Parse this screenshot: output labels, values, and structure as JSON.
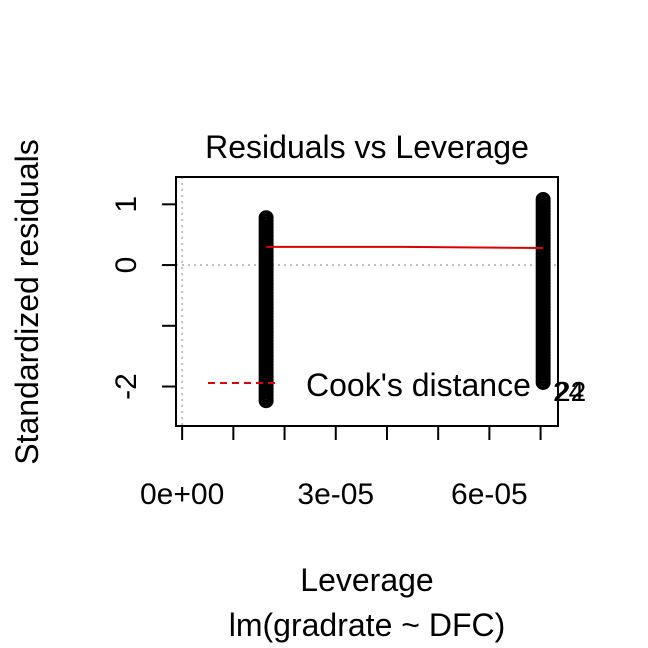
{
  "chart_data": {
    "type": "scatter",
    "title": "Residuals vs Leverage",
    "xlabel": "Leverage",
    "xlabel_sub": "lm(gradrate ~ DFC)",
    "ylabel": "Standardized residuals",
    "xlim": [
      -1.2e-06,
      7.34e-05
    ],
    "ylim": [
      -2.65,
      1.45
    ],
    "x_ticks": [
      0,
      1e-05,
      2e-05,
      3e-05,
      4e-05,
      5e-05,
      6e-05,
      7e-05
    ],
    "x_tick_labels": [
      {
        "value": 0,
        "label": "0e+00"
      },
      {
        "value": 3e-05,
        "label": "3e-05"
      },
      {
        "value": 6e-05,
        "label": "6e-05"
      }
    ],
    "y_ticks": [
      -2,
      -1,
      0,
      1
    ],
    "y_tick_labels": [
      {
        "value": -2,
        "label": "-2"
      },
      {
        "value": 0,
        "label": "0"
      },
      {
        "value": 1,
        "label": "1"
      }
    ],
    "point_groups": [
      {
        "x": 1.64e-05,
        "y_min": -2.28,
        "y_max": 0.78
      },
      {
        "x": 7.05e-05,
        "y_min": -1.98,
        "y_max": 1.08
      }
    ],
    "smooth_line": {
      "color": "#dd0000",
      "points": [
        [
          1.64e-05,
          0.3
        ],
        [
          4.33e-05,
          0.3
        ],
        [
          7.05e-05,
          0.28
        ]
      ]
    },
    "reference_lines": {
      "h_zero": 0,
      "v_zero": 0,
      "style": "dotted",
      "color": "#bebebe"
    },
    "legend": {
      "position": "bottom",
      "entries": [
        {
          "label": "Cook's distance",
          "style": "dashed",
          "color": "#dd0000"
        }
      ]
    },
    "point_labels": [
      "24",
      "22"
    ],
    "grid": false
  }
}
